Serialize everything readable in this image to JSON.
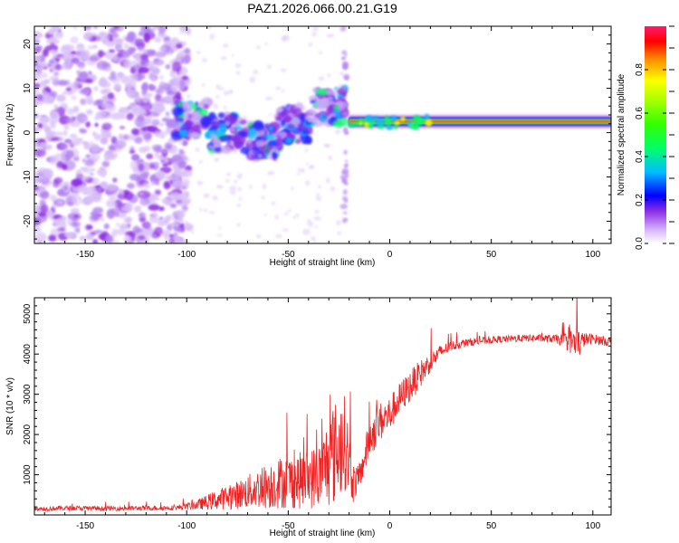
{
  "figure": {
    "title": "PAZ1.2026.066.00.21.G19"
  },
  "chart_data": [
    {
      "type": "heatmap",
      "name": "spectrogram",
      "title": "PAZ1.2026.066.00.21.G19",
      "xlabel": "Height of straight line (km)",
      "ylabel": "Frequency (Hz)",
      "xlim": [
        -175,
        109
      ],
      "ylim": [
        -25,
        24
      ],
      "xticks": [
        -150,
        -100,
        -50,
        0,
        50,
        100
      ],
      "yticks": [
        -20,
        -10,
        0,
        10,
        20
      ],
      "colorbar": {
        "label": "Normalized spectral amplitude",
        "range": [
          0.0,
          1.0
        ],
        "ticks": [
          0.0,
          0.2,
          0.4,
          0.6,
          0.8
        ],
        "colormap": [
          "#ffffff",
          "#c9a8f5",
          "#8a2be2",
          "#0000ff",
          "#00bfff",
          "#00ff7f",
          "#7cff00",
          "#ffff00",
          "#ff8c00",
          "#ff0000",
          "#ff1493"
        ]
      },
      "description_series": [
        {
          "name": "noise region",
          "x_range": [
            -175,
            -105
          ],
          "freq_range": [
            -25,
            24
          ],
          "amplitude": 0.05
        },
        {
          "name": "scattered signal",
          "x_range": [
            -105,
            -22
          ],
          "freq_center": [
            3,
            0,
            -2,
            2,
            6
          ],
          "amplitude": 0.25
        },
        {
          "name": "tone",
          "x_range": [
            -20,
            109
          ],
          "freq": 2.5,
          "amplitude": 0.95
        }
      ]
    },
    {
      "type": "line",
      "name": "snr",
      "xlabel": "Height of straight line (km)",
      "ylabel": "SNR (10 * v/v)",
      "xlim": [
        -175,
        109
      ],
      "ylim": [
        0,
        5400
      ],
      "xticks": [
        -150,
        -100,
        -50,
        0,
        50,
        100
      ],
      "yticks": [
        1000,
        2000,
        3000,
        4000,
        5000
      ],
      "series": [
        {
          "name": "SNR",
          "color": "#ee2222",
          "x": [
            -175,
            -160,
            -140,
            -120,
            -105,
            -95,
            -85,
            -75,
            -65,
            -55,
            -45,
            -35,
            -28,
            -22,
            -18,
            -15,
            -10,
            -5,
            0,
            5,
            10,
            15,
            20,
            25,
            30,
            40,
            50,
            60,
            70,
            80,
            85,
            90,
            92,
            95,
            100,
            109
          ],
          "mean": [
            150,
            170,
            160,
            170,
            180,
            250,
            380,
            500,
            650,
            800,
            850,
            950,
            1500,
            1800,
            800,
            900,
            1900,
            2300,
            2500,
            2900,
            3200,
            3500,
            3800,
            4050,
            4200,
            4300,
            4350,
            4380,
            4400,
            4380,
            4350,
            4300,
            4200,
            4350,
            4380,
            4300
          ],
          "noise": [
            60,
            60,
            60,
            60,
            60,
            120,
            250,
            350,
            500,
            650,
            700,
            800,
            1300,
            1200,
            500,
            300,
            500,
            500,
            450,
            400,
            400,
            350,
            250,
            180,
            120,
            100,
            90,
            90,
            90,
            100,
            150,
            350,
            500,
            200,
            120,
            120
          ]
        }
      ]
    }
  ]
}
